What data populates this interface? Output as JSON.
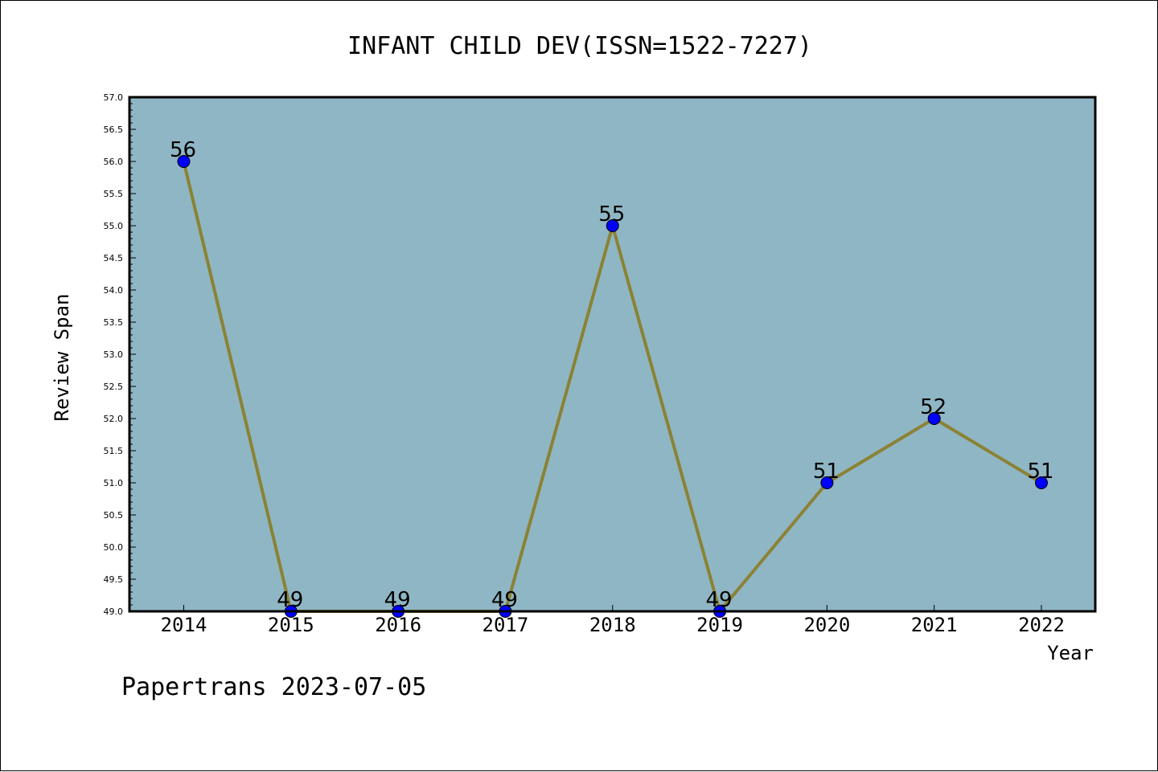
{
  "chart_data": {
    "type": "line",
    "title": "INFANT CHILD DEV(ISSN=1522-7227)",
    "xlabel": "Year",
    "ylabel": "Review Span",
    "categories": [
      "2014",
      "2015",
      "2016",
      "2017",
      "2018",
      "2019",
      "2020",
      "2021",
      "2022"
    ],
    "series": [
      {
        "values": [
          56,
          49,
          49,
          49,
          55,
          49,
          51,
          52,
          51
        ]
      }
    ],
    "data_labels": [
      "56",
      "49",
      "49",
      "49",
      "55",
      "49",
      "51",
      "52",
      "51"
    ],
    "ylim": [
      49.0,
      57.0
    ],
    "yticks": [
      "49.0",
      "49.5",
      "50.0",
      "50.5",
      "51.0",
      "51.5",
      "52.0",
      "52.5",
      "53.0",
      "53.5",
      "54.0",
      "54.5",
      "55.0",
      "55.5",
      "56.0",
      "56.5",
      "57.0"
    ],
    "grid": false,
    "legend": "none"
  },
  "footer": {
    "text": "Papertrans 2023-07-05"
  },
  "colors": {
    "plot_background": "#8fb6c4",
    "line": "#8b8235",
    "marker_fill": "#0000ff",
    "marker_edge": "#000000",
    "axis": "#000000"
  }
}
